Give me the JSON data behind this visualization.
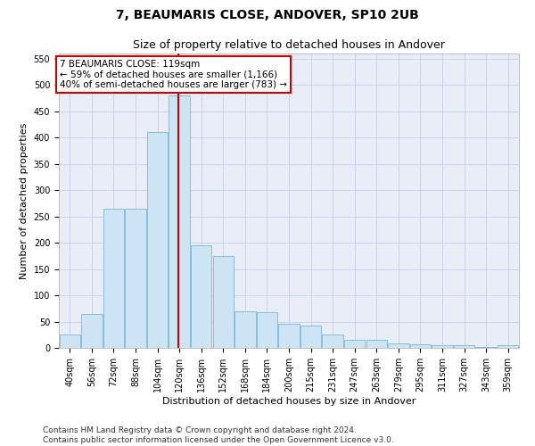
{
  "title": "7, BEAUMARIS CLOSE, ANDOVER, SP10 2UB",
  "subtitle": "Size of property relative to detached houses in Andover",
  "xlabel": "Distribution of detached houses by size in Andover",
  "ylabel": "Number of detached properties",
  "bar_color": "#cde4f5",
  "bar_edge_color": "#7ab8d9",
  "grid_color": "#c5cfe6",
  "background_color": "#e8edf7",
  "vline_value": 119,
  "vline_color": "#cc0000",
  "categories": [
    "40sqm",
    "56sqm",
    "72sqm",
    "88sqm",
    "104sqm",
    "120sqm",
    "136sqm",
    "152sqm",
    "168sqm",
    "184sqm",
    "200sqm",
    "215sqm",
    "231sqm",
    "247sqm",
    "263sqm",
    "279sqm",
    "295sqm",
    "311sqm",
    "327sqm",
    "343sqm",
    "359sqm"
  ],
  "bin_edges": [
    32,
    48,
    64,
    80,
    96,
    112,
    128,
    144,
    160,
    176,
    192,
    208,
    224,
    240,
    256,
    272,
    288,
    304,
    320,
    336,
    352,
    368
  ],
  "values": [
    25,
    65,
    265,
    265,
    410,
    480,
    195,
    175,
    70,
    68,
    45,
    43,
    25,
    15,
    15,
    8,
    7,
    5,
    5,
    2,
    5
  ],
  "ylim": [
    0,
    560
  ],
  "yticks": [
    0,
    50,
    100,
    150,
    200,
    250,
    300,
    350,
    400,
    450,
    500,
    550
  ],
  "annotation_text": "7 BEAUMARIS CLOSE: 119sqm\n← 59% of detached houses are smaller (1,166)\n40% of semi-detached houses are larger (783) →",
  "annotation_box_color": "#ffffff",
  "annotation_box_edge_color": "#cc0000",
  "footer_line1": "Contains HM Land Registry data © Crown copyright and database right 2024.",
  "footer_line2": "Contains public sector information licensed under the Open Government Licence v3.0.",
  "title_fontsize": 10,
  "subtitle_fontsize": 9,
  "axis_label_fontsize": 8,
  "tick_fontsize": 7,
  "annotation_fontsize": 7.5,
  "footer_fontsize": 6.5
}
